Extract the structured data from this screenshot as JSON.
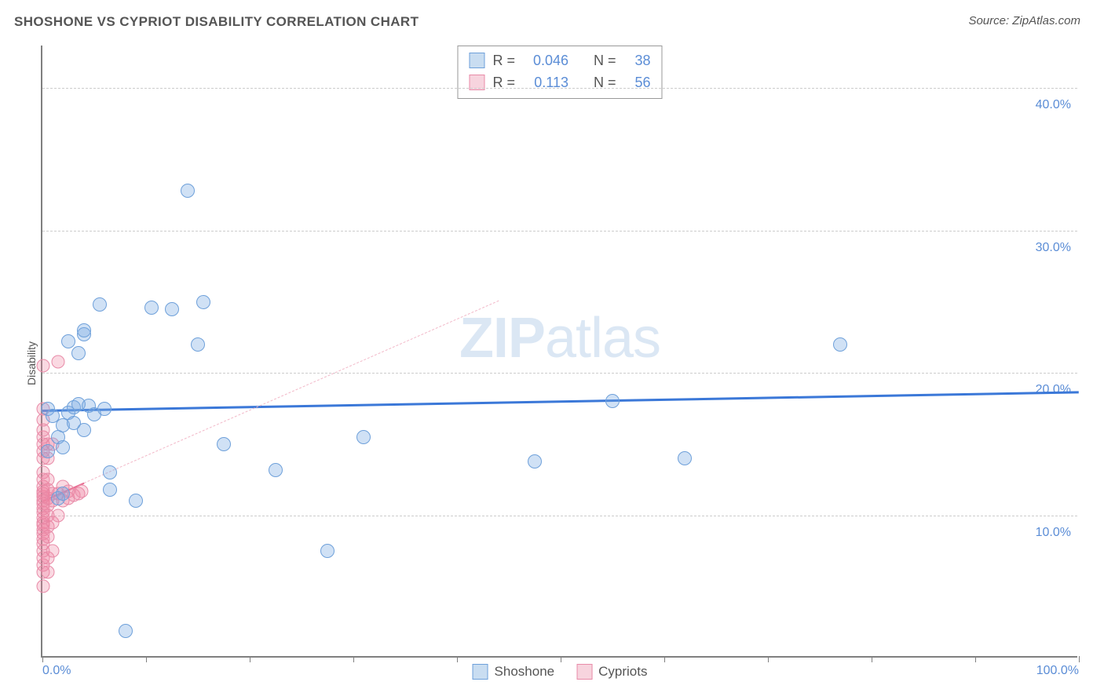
{
  "title": "SHOSHONE VS CYPRIOT DISABILITY CORRELATION CHART",
  "source": "Source: ZipAtlas.com",
  "ylabel": "Disability",
  "watermark": {
    "bold": "ZIP",
    "rest": "atlas"
  },
  "chart": {
    "type": "scatter",
    "xlim": [
      0,
      100
    ],
    "ylim": [
      0,
      43
    ],
    "xticks": [
      0,
      10,
      20,
      30,
      40,
      50,
      60,
      70,
      80,
      90,
      100
    ],
    "xtick_labels": {
      "0": "0.0%",
      "100": "100.0%"
    },
    "yticks": [
      10,
      20,
      30,
      40
    ],
    "ytick_labels": [
      "10.0%",
      "20.0%",
      "30.0%",
      "40.0%"
    ],
    "grid_color": "#cccccc",
    "axis_color": "#808080",
    "background": "#ffffff",
    "series": [
      {
        "name": "Shoshone",
        "key": "shoshone",
        "marker_fill": "rgba(120,170,225,0.35)",
        "marker_stroke": "#6ea0da",
        "marker_size": 18,
        "trend": {
          "y_at_x0": 17.4,
          "y_at_x100": 18.7,
          "color": "#3b78d8",
          "width": 3,
          "style": "solid",
          "extent": [
            0,
            100
          ]
        },
        "points": [
          [
            0.5,
            14.5
          ],
          [
            0.5,
            17.5
          ],
          [
            1.0,
            17.0
          ],
          [
            1.5,
            11.2
          ],
          [
            1.5,
            15.5
          ],
          [
            2.0,
            11.5
          ],
          [
            2.0,
            14.8
          ],
          [
            2.0,
            16.3
          ],
          [
            2.5,
            17.2
          ],
          [
            2.5,
            22.2
          ],
          [
            3.0,
            16.5
          ],
          [
            3.0,
            17.6
          ],
          [
            3.5,
            17.8
          ],
          [
            3.5,
            21.4
          ],
          [
            4.0,
            16.0
          ],
          [
            4.0,
            22.7
          ],
          [
            4.0,
            23.0
          ],
          [
            4.5,
            17.7
          ],
          [
            5.0,
            17.1
          ],
          [
            5.5,
            24.8
          ],
          [
            6.0,
            17.5
          ],
          [
            6.5,
            11.8
          ],
          [
            6.5,
            13.0
          ],
          [
            8.0,
            1.9
          ],
          [
            9.0,
            11.0
          ],
          [
            10.5,
            24.6
          ],
          [
            12.5,
            24.5
          ],
          [
            14.0,
            32.8
          ],
          [
            15.0,
            22.0
          ],
          [
            15.5,
            25.0
          ],
          [
            17.5,
            15.0
          ],
          [
            22.5,
            13.2
          ],
          [
            27.5,
            7.5
          ],
          [
            31.0,
            15.5
          ],
          [
            47.5,
            13.8
          ],
          [
            55.0,
            18.0
          ],
          [
            62.0,
            14.0
          ],
          [
            77.0,
            22.0
          ]
        ]
      },
      {
        "name": "Cypriots",
        "key": "cypriots",
        "marker_fill": "rgba(240,130,160,0.3)",
        "marker_stroke": "#e88ba8",
        "marker_size": 17,
        "trend": {
          "y_at_x0": 11.0,
          "y_at_x100": 43.0,
          "color": "#e86a8f",
          "width": 2.5,
          "style": "solid",
          "extent": [
            0,
            4
          ],
          "dash_color": "#f2b8c8",
          "dash_extent": [
            4,
            44
          ]
        },
        "points": [
          [
            0.1,
            5.0
          ],
          [
            0.1,
            6.0
          ],
          [
            0.1,
            6.5
          ],
          [
            0.1,
            7.0
          ],
          [
            0.1,
            7.5
          ],
          [
            0.1,
            8.0
          ],
          [
            0.1,
            8.3
          ],
          [
            0.1,
            8.7
          ],
          [
            0.1,
            9.0
          ],
          [
            0.1,
            9.3
          ],
          [
            0.1,
            9.5
          ],
          [
            0.1,
            9.8
          ],
          [
            0.1,
            10.2
          ],
          [
            0.1,
            10.5
          ],
          [
            0.1,
            10.8
          ],
          [
            0.1,
            11.0
          ],
          [
            0.1,
            11.3
          ],
          [
            0.1,
            11.5
          ],
          [
            0.1,
            11.7
          ],
          [
            0.1,
            12.0
          ],
          [
            0.1,
            12.5
          ],
          [
            0.1,
            13.0
          ],
          [
            0.1,
            14.0
          ],
          [
            0.1,
            14.5
          ],
          [
            0.1,
            15.0
          ],
          [
            0.1,
            15.5
          ],
          [
            0.1,
            16.0
          ],
          [
            0.1,
            16.7
          ],
          [
            0.1,
            17.5
          ],
          [
            0.1,
            20.5
          ],
          [
            0.5,
            6.0
          ],
          [
            0.5,
            7.0
          ],
          [
            0.5,
            8.5
          ],
          [
            0.5,
            9.2
          ],
          [
            0.5,
            10.0
          ],
          [
            0.5,
            10.7
          ],
          [
            0.5,
            11.2
          ],
          [
            0.5,
            11.8
          ],
          [
            0.5,
            12.5
          ],
          [
            0.5,
            14.0
          ],
          [
            0.5,
            15.0
          ],
          [
            1.0,
            7.5
          ],
          [
            1.0,
            9.5
          ],
          [
            1.0,
            11.0
          ],
          [
            1.0,
            11.5
          ],
          [
            1.0,
            15.0
          ],
          [
            1.5,
            10.0
          ],
          [
            1.5,
            11.5
          ],
          [
            1.5,
            20.8
          ],
          [
            2.0,
            11.0
          ],
          [
            2.0,
            12.0
          ],
          [
            2.5,
            11.2
          ],
          [
            2.5,
            11.7
          ],
          [
            3.0,
            11.4
          ],
          [
            3.5,
            11.5
          ],
          [
            3.8,
            11.7
          ]
        ]
      }
    ]
  },
  "stats": {
    "rows": [
      {
        "swatch": "blue",
        "r": "0.046",
        "n": "38"
      },
      {
        "swatch": "pink",
        "r": "0.113",
        "n": "56"
      }
    ],
    "R_label": "R =",
    "N_label": "N ="
  },
  "legend": {
    "items": [
      {
        "swatch": "blue",
        "label": "Shoshone"
      },
      {
        "swatch": "pink",
        "label": "Cypriots"
      }
    ]
  },
  "colors": {
    "blue_accent": "#5b8dd6",
    "blue_line": "#3b78d8",
    "blue_marker": "#6ea0da",
    "pink_line": "#e86a8f",
    "pink_marker": "#e88ba8",
    "text": "#555555"
  }
}
